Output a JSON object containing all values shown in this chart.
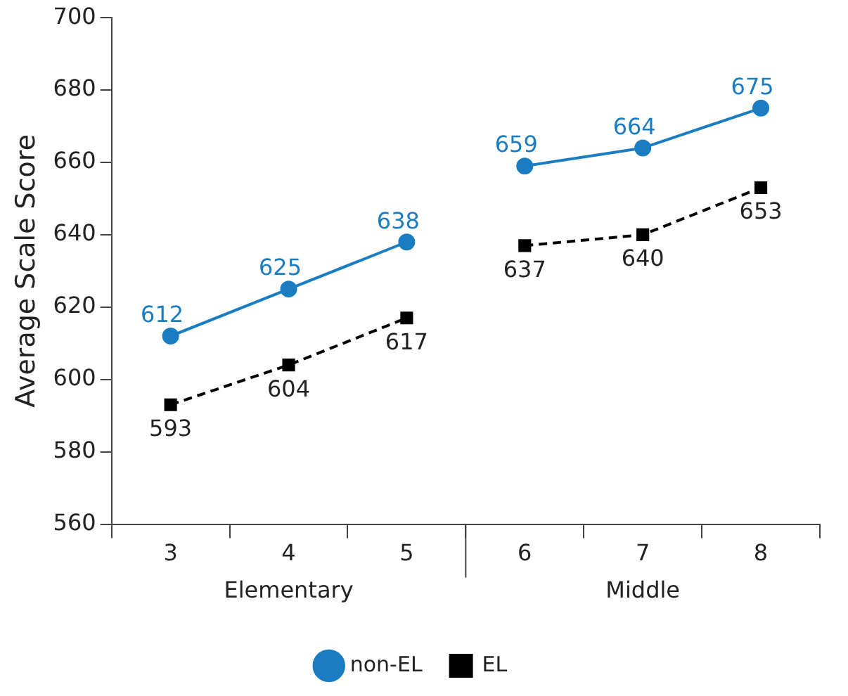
{
  "chart_data": {
    "type": "line",
    "ylabel": "Average Scale Score",
    "categories": [
      "3",
      "4",
      "5",
      "6",
      "7",
      "8"
    ],
    "series": [
      {
        "name": "non-EL",
        "color": "#1a7dc2",
        "values": [
          612,
          625,
          638,
          659,
          664,
          675
        ],
        "marker": "circle",
        "line_style": "solid"
      },
      {
        "name": "EL",
        "color": "#000000",
        "values": [
          593,
          604,
          617,
          637,
          640,
          653
        ],
        "marker": "square",
        "line_style": "dashed"
      }
    ],
    "annotations": [
      "Elementary",
      "Middle"
    ],
    "ylim": [
      560,
      700
    ],
    "yticks": [
      560,
      580,
      600,
      620,
      640,
      660,
      680,
      700
    ],
    "grid": false,
    "legend": "bottom",
    "data_labels": true
  }
}
